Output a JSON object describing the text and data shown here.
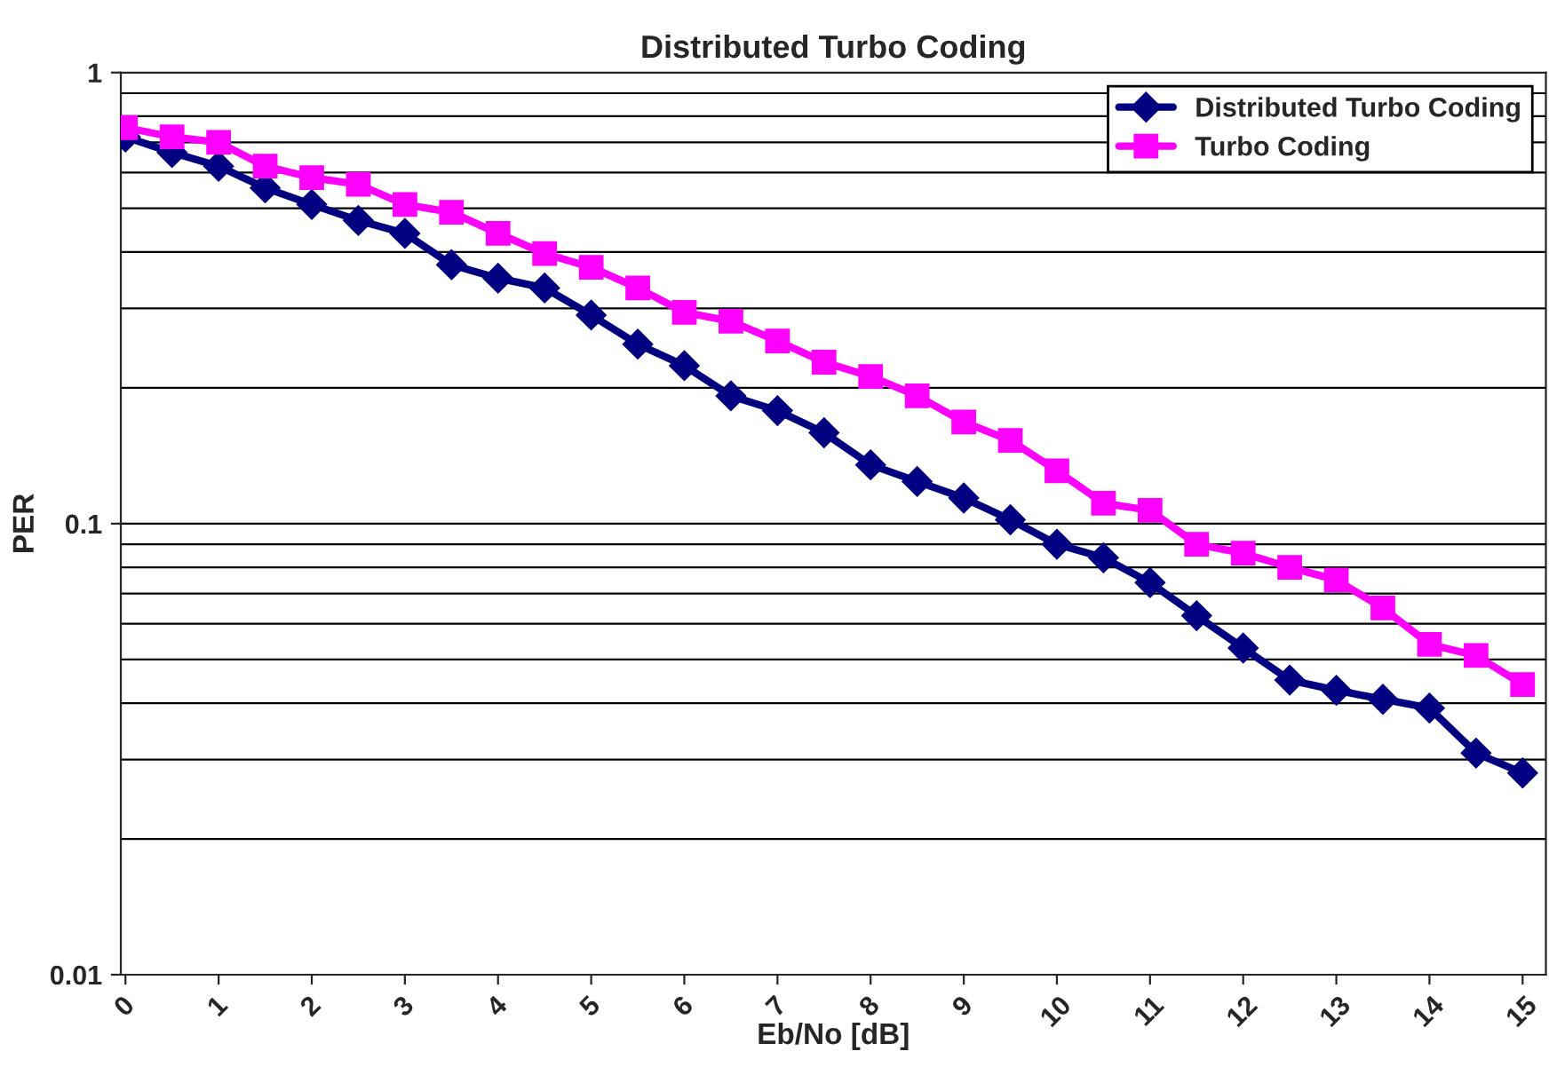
{
  "chart_data": {
    "type": "line",
    "title": "Distributed Turbo Coding",
    "xlabel": "Eb/No [dB]",
    "ylabel": "PER",
    "x": [
      0,
      0.5,
      1,
      1.5,
      2,
      2.5,
      3,
      3.5,
      4,
      4.5,
      5,
      5.5,
      6,
      6.5,
      7,
      7.5,
      8,
      8.5,
      9,
      9.5,
      10,
      10.5,
      11,
      11.5,
      12,
      12.5,
      13,
      13.5,
      14,
      14.5,
      15
    ],
    "series": [
      {
        "name": "Distributed Turbo Coding",
        "color": "#000080",
        "marker": "diamond",
        "values": [
          0.72,
          0.665,
          0.62,
          0.555,
          0.51,
          0.47,
          0.44,
          0.375,
          0.35,
          0.333,
          0.29,
          0.25,
          0.224,
          0.192,
          0.178,
          0.159,
          0.135,
          0.124,
          0.114,
          0.102,
          0.09,
          0.084,
          0.074,
          0.0625,
          0.053,
          0.045,
          0.0427,
          0.0408,
          0.039,
          0.031,
          0.028
        ]
      },
      {
        "name": "Turbo Coding",
        "color": "#ff00ff",
        "marker": "square",
        "values": [
          0.755,
          0.72,
          0.7,
          0.62,
          0.585,
          0.565,
          0.51,
          0.49,
          0.44,
          0.397,
          0.37,
          0.333,
          0.294,
          0.281,
          0.254,
          0.228,
          0.212,
          0.192,
          0.168,
          0.153,
          0.131,
          0.111,
          0.107,
          0.09,
          0.086,
          0.08,
          0.075,
          0.065,
          0.054,
          0.051,
          0.044
        ]
      }
    ],
    "log": "y",
    "xlim": [
      -0.05,
      15.25
    ],
    "xticks": [
      0,
      1,
      2,
      3,
      4,
      5,
      6,
      7,
      8,
      9,
      10,
      11,
      12,
      13,
      14,
      15
    ],
    "ylim": [
      0.01,
      1
    ],
    "yticks": [
      0.01,
      0.1,
      1
    ],
    "grid": "y",
    "legend": "top right",
    "line_style": "solid"
  }
}
